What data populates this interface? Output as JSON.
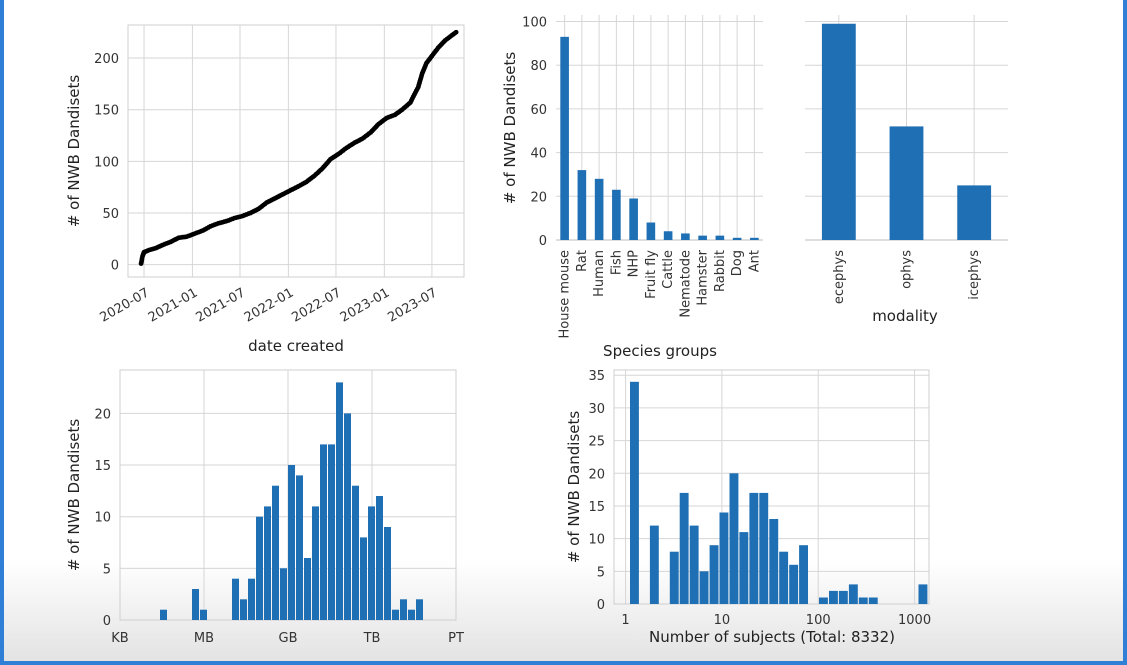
{
  "chart_data": [
    {
      "type": "scatter",
      "xlabel": "date created",
      "ylabel": "# of NWB Dandisets",
      "xticks": [
        "2020-07",
        "2021-01",
        "2021-07",
        "2022-01",
        "2022-07",
        "2023-01",
        "2023-07"
      ],
      "yticks": [
        0,
        50,
        100,
        150,
        200
      ],
      "xlim": [
        "2020-05-01",
        "2023-10-31"
      ],
      "ylim": [
        -12,
        232
      ],
      "color": "#000000",
      "points": [
        [
          "2020-06-20",
          1
        ],
        [
          "2020-06-25",
          8
        ],
        [
          "2020-07-01",
          12
        ],
        [
          "2020-07-20",
          14
        ],
        [
          "2020-08-15",
          16
        ],
        [
          "2020-09-10",
          19
        ],
        [
          "2020-10-10",
          22
        ],
        [
          "2020-11-10",
          26
        ],
        [
          "2020-12-10",
          27
        ],
        [
          "2021-01-10",
          30
        ],
        [
          "2021-02-10",
          33
        ],
        [
          "2021-03-10",
          37
        ],
        [
          "2021-04-10",
          40
        ],
        [
          "2021-05-10",
          42
        ],
        [
          "2021-06-10",
          45
        ],
        [
          "2021-07-10",
          47
        ],
        [
          "2021-08-10",
          50
        ],
        [
          "2021-09-10",
          54
        ],
        [
          "2021-10-10",
          60
        ],
        [
          "2021-11-10",
          64
        ],
        [
          "2021-12-10",
          68
        ],
        [
          "2022-01-10",
          72
        ],
        [
          "2022-02-10",
          76
        ],
        [
          "2022-03-10",
          80
        ],
        [
          "2022-04-10",
          86
        ],
        [
          "2022-05-10",
          93
        ],
        [
          "2022-06-10",
          102
        ],
        [
          "2022-07-10",
          107
        ],
        [
          "2022-08-10",
          113
        ],
        [
          "2022-09-10",
          118
        ],
        [
          "2022-10-10",
          122
        ],
        [
          "2022-11-10",
          128
        ],
        [
          "2022-12-10",
          136
        ],
        [
          "2023-01-10",
          142
        ],
        [
          "2023-02-10",
          145
        ],
        [
          "2023-03-10",
          150
        ],
        [
          "2023-04-10",
          157
        ],
        [
          "2023-05-10",
          172
        ],
        [
          "2023-05-25",
          185
        ],
        [
          "2023-06-10",
          195
        ],
        [
          "2023-07-01",
          202
        ],
        [
          "2023-07-25",
          210
        ],
        [
          "2023-08-20",
          217
        ],
        [
          "2023-09-15",
          222
        ],
        [
          "2023-10-01",
          225
        ]
      ]
    },
    {
      "type": "bar",
      "xlabel": "Species groups",
      "ylabel": "# of NWB Dandisets",
      "categories": [
        "House mouse",
        "Rat",
        "Human",
        "Fish",
        "NHP",
        "Fruit fly",
        "Cattle",
        "Nematode",
        "Hamster",
        "Rabbit",
        "Dog",
        "Ant"
      ],
      "values": [
        93,
        32,
        28,
        23,
        19,
        8,
        4,
        3,
        2,
        2,
        1,
        1
      ],
      "yticks": [
        0,
        20,
        40,
        60,
        80,
        100
      ],
      "ylim": [
        0,
        103
      ],
      "color": "#1f6fb4"
    },
    {
      "type": "bar",
      "xlabel": "modality",
      "ylabel": "",
      "categories": [
        "ecephys",
        "ophys",
        "icephys"
      ],
      "values": [
        99,
        52,
        25
      ],
      "ylim": [
        0,
        103
      ],
      "color": "#1f6fb4"
    },
    {
      "type": "bar",
      "subtype": "histogram",
      "xlabel": "",
      "ylabel": "# of NWB Dandisets",
      "xticks": [
        "KB",
        "MB",
        "GB",
        "TB",
        "PT"
      ],
      "yticks": [
        0,
        5,
        10,
        15,
        20
      ],
      "ylim": [
        0,
        24.2
      ],
      "color": "#1f6fb4",
      "bin_counts": [
        0,
        0,
        0,
        0,
        0,
        1,
        0,
        0,
        0,
        3,
        1,
        0,
        0,
        0,
        4,
        2,
        4,
        10,
        11,
        13,
        5,
        15,
        14,
        6,
        11,
        17,
        17,
        23,
        20,
        13,
        8,
        11,
        12,
        9,
        1,
        2,
        1,
        2,
        0,
        0,
        0,
        0
      ]
    },
    {
      "type": "bar",
      "subtype": "histogram",
      "xlabel": "Number of subjects (Total: 8332)",
      "ylabel": "# of NWB Dandisets",
      "xticks": [
        "1",
        "10",
        "100",
        "1000"
      ],
      "yticks": [
        0,
        5,
        10,
        15,
        20,
        25,
        30,
        35
      ],
      "ylim": [
        0,
        35.8
      ],
      "color": "#1f6fb4",
      "bin_counts": [
        34,
        0,
        12,
        0,
        8,
        17,
        12,
        5,
        9,
        14,
        20,
        11,
        17,
        17,
        13,
        8,
        6,
        9,
        0,
        1,
        2,
        2,
        3,
        1,
        1,
        0,
        0,
        0,
        0,
        3
      ]
    }
  ]
}
